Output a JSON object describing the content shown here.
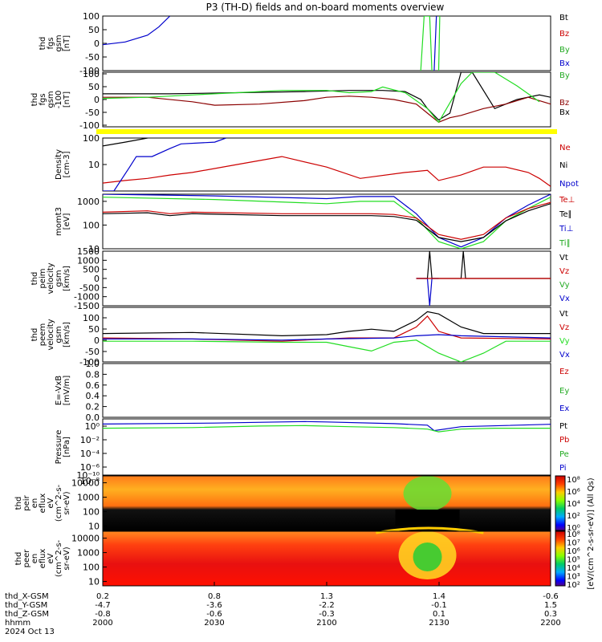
{
  "title": "P3 (TH-D) fields and on-board moments overview",
  "colors": {
    "black": "#000000",
    "red": "#cc0000",
    "green": "#22dd22",
    "blue": "#0000cc",
    "darkred": "#8b0000",
    "yellow": "#ffff00"
  },
  "chart_data": [
    {
      "type": "line",
      "panel": "fgs",
      "ylabel_lines": [
        "thd",
        "fgs",
        "gsm",
        "[nT]"
      ],
      "ylim": [
        -100,
        100
      ],
      "yticks": [
        "100",
        "50",
        "0",
        "-50",
        "-100"
      ],
      "legend": [
        "Bt",
        "Bz",
        "By",
        "Bx"
      ],
      "series": [
        {
          "name": "Bx",
          "color": "blue",
          "x": [
            2000,
            2010,
            2020,
            2025,
            2030
          ],
          "y": [
            -5,
            5,
            30,
            60,
            100
          ]
        },
        {
          "name": "Bx",
          "color": "blue",
          "x": [
            2148,
            2149
          ],
          "y": [
            -100,
            100
          ]
        },
        {
          "name": "By",
          "color": "green",
          "x": [
            2142,
            2143.5,
            2146,
            2147
          ],
          "y": [
            -100,
            100,
            100,
            -100
          ]
        },
        {
          "name": "By",
          "color": "green",
          "x": [
            2150,
            2150.5
          ],
          "y": [
            -100,
            100
          ]
        }
      ]
    },
    {
      "type": "line",
      "panel": "fgs-100",
      "ylabel_lines": [
        "thd",
        "fgs",
        "gsm",
        "-100",
        "[nT]"
      ],
      "ylim": [
        -140,
        100
      ],
      "yticks": [
        "100",
        "50",
        "0",
        "-50",
        "-100"
      ],
      "legend": [
        "By",
        "Bz",
        "Bx"
      ],
      "series": [
        {
          "name": "Bx",
          "color": "black",
          "x": [
            2000,
            2030,
            2060,
            2090,
            2110,
            2125,
            2135,
            2142,
            2145,
            2150,
            2155,
            2160,
            2165,
            2175,
            2185,
            2195,
            2200
          ],
          "y": [
            5,
            5,
            10,
            15,
            20,
            20,
            15,
            -20,
            -60,
            -110,
            -80,
            100,
            100,
            -60,
            -20,
            0,
            -10
          ]
        },
        {
          "name": "Bz",
          "color": "darkred",
          "x": [
            2000,
            2020,
            2040,
            2050,
            2070,
            2090,
            2100,
            2110,
            2120,
            2130,
            2140,
            2145,
            2150,
            2155,
            2160,
            2170,
            2180,
            2190,
            2200
          ],
          "y": [
            -10,
            -10,
            -30,
            -45,
            -40,
            -25,
            -10,
            -5,
            -10,
            -20,
            -40,
            -80,
            -120,
            -100,
            -90,
            -60,
            -40,
            -10,
            -40
          ]
        },
        {
          "name": "By",
          "color": "green",
          "x": [
            2000,
            2020,
            2040,
            2060,
            2080,
            2100,
            2110,
            2120,
            2125,
            2135,
            2145,
            2150,
            2160,
            2165,
            2175,
            2185,
            2195
          ],
          "y": [
            -15,
            -10,
            0,
            10,
            20,
            20,
            10,
            15,
            35,
            10,
            -60,
            -120,
            50,
            100,
            100,
            40,
            -30
          ]
        }
      ]
    },
    {
      "type": "line",
      "panel": "density",
      "ylabel_lines": [
        "Density",
        "[cm-3]"
      ],
      "scale": "log",
      "ylim": [
        1,
        100
      ],
      "yticks": [
        "100",
        "10"
      ],
      "legend": [
        "Ne",
        "Ni",
        "Npot"
      ],
      "series": [
        {
          "name": "Ne",
          "color": "red",
          "x": [
            2000,
            2010,
            2020,
            2030,
            2040,
            2060,
            2080,
            2100,
            2115,
            2135,
            2145,
            2150,
            2160,
            2170,
            2180,
            2190,
            2195,
            2200
          ],
          "y": [
            2,
            2.5,
            3,
            4,
            5,
            10,
            20,
            8,
            3,
            5,
            6,
            2.5,
            4,
            8,
            8,
            5,
            3,
            1.5
          ]
        },
        {
          "name": "Ni",
          "color": "black",
          "x": [
            2000,
            2010,
            2020,
            2030
          ],
          "y": [
            50,
            70,
            100,
            150
          ]
        },
        {
          "name": "Npot",
          "color": "blue",
          "x": [
            2000,
            2005,
            2012,
            2015,
            2022,
            2030,
            2035,
            2050,
            2055
          ],
          "y": [
            1,
            1,
            8,
            20,
            20,
            40,
            60,
            70,
            100
          ]
        }
      ]
    },
    {
      "type": "line",
      "panel": "mom",
      "ylabel_lines": [
        "momt3",
        "[eV]"
      ],
      "scale": "log",
      "ylim": [
        10,
        2000
      ],
      "yticks": [
        "1000",
        "100",
        "10"
      ],
      "legend": [
        "Te⊥",
        "Te∥",
        "Ti⊥",
        "Ti∥"
      ],
      "series": [
        {
          "name": "Ti⊥",
          "color": "blue",
          "x": [
            2000,
            2050,
            2100,
            2115,
            2130,
            2140,
            2150,
            2160,
            2170,
            2180,
            2190,
            2200
          ],
          "y": [
            2000,
            1700,
            1300,
            1600,
            1600,
            300,
            30,
            12,
            30,
            200,
            700,
            2000
          ]
        },
        {
          "name": "Ti∥",
          "color": "green",
          "x": [
            2000,
            2050,
            2100,
            2115,
            2130,
            2140,
            2150,
            2160,
            2170,
            2180,
            2190,
            2200
          ],
          "y": [
            1500,
            1200,
            800,
            1000,
            1000,
            200,
            20,
            10,
            20,
            150,
            500,
            1500
          ]
        },
        {
          "name": "Te⊥",
          "color": "red",
          "x": [
            2000,
            2020,
            2030,
            2040,
            2080,
            2120,
            2130,
            2140,
            2150,
            2160,
            2170,
            2180,
            2190,
            2200
          ],
          "y": [
            350,
            400,
            300,
            350,
            300,
            300,
            280,
            200,
            40,
            25,
            40,
            200,
            500,
            900
          ]
        },
        {
          "name": "Te∥",
          "color": "black",
          "x": [
            2000,
            2020,
            2030,
            2040,
            2080,
            2120,
            2130,
            2140,
            2150,
            2160,
            2170,
            2180,
            2190,
            2200
          ],
          "y": [
            300,
            330,
            250,
            300,
            250,
            250,
            230,
            160,
            30,
            20,
            30,
            150,
            400,
            800
          ]
        }
      ]
    },
    {
      "type": "line",
      "panel": "peim-velocity",
      "ylabel_lines": [
        "thd",
        "peim",
        "velocity",
        "gsm",
        "[km/s]"
      ],
      "ylim": [
        -1500,
        1500
      ],
      "yticks": [
        "1500",
        "1000",
        "500",
        "0",
        "-500",
        "-1000",
        "-1500"
      ],
      "legend": [
        "Vt",
        "Vz",
        "Vy",
        "Vx"
      ],
      "series": [
        {
          "name": "Vt",
          "color": "black",
          "x": [
            2140,
            2145,
            2146,
            2147,
            2150,
            2160,
            2161,
            2162,
            2200
          ],
          "y": [
            0,
            0,
            1500,
            0,
            0,
            0,
            1500,
            0,
            0
          ]
        },
        {
          "name": "Vx",
          "color": "blue",
          "x": [
            2140,
            2145,
            2146,
            2147,
            2150
          ],
          "y": [
            0,
            0,
            -1500,
            0,
            0
          ]
        },
        {
          "name": "Vz",
          "color": "red",
          "x": [
            2140,
            2150,
            2200
          ],
          "y": [
            0,
            0,
            0
          ]
        }
      ]
    },
    {
      "type": "line",
      "panel": "peem-velocity",
      "ylabel_lines": [
        "thd",
        "peem",
        "velocity",
        "gsm",
        "[km/s]"
      ],
      "ylim": [
        -100,
        150
      ],
      "yticks": [
        "100",
        "50",
        "0",
        "-50",
        "-100"
      ],
      "legend": [
        "Vt",
        "Vz",
        "Vy",
        "Vx"
      ],
      "series": [
        {
          "name": "Vt",
          "color": "black",
          "x": [
            2000,
            2040,
            2080,
            2100,
            2110,
            2120,
            2130,
            2140,
            2145,
            2150,
            2160,
            2170,
            2200
          ],
          "y": [
            30,
            35,
            20,
            25,
            40,
            50,
            40,
            90,
            130,
            120,
            60,
            30,
            30
          ]
        },
        {
          "name": "Vz",
          "color": "red",
          "x": [
            2000,
            2040,
            2080,
            2100,
            2110,
            2130,
            2140,
            2145,
            2150,
            2160,
            2200
          ],
          "y": [
            10,
            5,
            -5,
            5,
            10,
            10,
            60,
            110,
            40,
            10,
            5
          ]
        },
        {
          "name": "Vy",
          "color": "green",
          "x": [
            2000,
            2040,
            2080,
            2100,
            2110,
            2120,
            2130,
            2140,
            2150,
            2160,
            2170,
            2180,
            2200
          ],
          "y": [
            -5,
            -5,
            -10,
            -10,
            -30,
            -50,
            -10,
            0,
            -60,
            -100,
            -60,
            -5,
            -5
          ]
        },
        {
          "name": "Vx",
          "color": "blue",
          "x": [
            2000,
            2040,
            2080,
            2100,
            2130,
            2140,
            2150,
            2160,
            2200
          ],
          "y": [
            5,
            5,
            0,
            5,
            10,
            20,
            25,
            20,
            10
          ]
        }
      ]
    },
    {
      "type": "line",
      "panel": "efield",
      "ylabel_lines": [
        "E=-VxB",
        "[mV/m]"
      ],
      "ylim": [
        0,
        1
      ],
      "yticks": [
        "1.0",
        "0.8",
        "0.6",
        "0.4",
        "0.2",
        "0.0"
      ],
      "legend": [
        "Ez",
        "Ey",
        "Ex"
      ],
      "series": []
    },
    {
      "type": "line",
      "panel": "pressure",
      "ylabel_lines": [
        "Pressure",
        "[nPa]"
      ],
      "scale": "log",
      "ylim": [
        1e-10,
        10
      ],
      "yticks": [
        "10⁰",
        "10⁻²",
        "10⁻⁴",
        "10⁻⁶",
        "10⁻⁸",
        "10⁻¹⁰"
      ],
      "legend": [
        "Pt",
        "Pb",
        "Pe",
        "Pi"
      ],
      "series": [
        {
          "name": "Pt",
          "color": "blue",
          "x": [
            2000,
            2050,
            2090,
            2100,
            2130,
            2145,
            2148,
            2160,
            2200
          ],
          "y": [
            1,
            1.5,
            3,
            2.5,
            1.2,
            0.6,
            0.05,
            0.3,
            0.9
          ]
        },
        {
          "name": "Pe",
          "color": "green",
          "x": [
            2000,
            2040,
            2070,
            2090,
            2110,
            2130,
            2145,
            2150,
            2160,
            2175,
            2200
          ],
          "y": [
            0.15,
            0.2,
            0.4,
            0.5,
            0.3,
            0.2,
            0.1,
            0.03,
            0.1,
            0.15,
            0.15
          ]
        }
      ]
    },
    {
      "type": "heatmap",
      "panel": "peir",
      "ylabel_lines": [
        "thd",
        "peir",
        "en",
        "eflux",
        "eV",
        "(cm^2-s-",
        "sr-eV)"
      ],
      "scale": "log",
      "ylim": [
        5,
        30000
      ],
      "yticks": [
        "10000",
        "1000",
        "100",
        "10"
      ]
    },
    {
      "type": "heatmap",
      "panel": "peer",
      "ylabel_lines": [
        "thd",
        "peer",
        "en",
        "eflux",
        "eV",
        "(cm^2-s-",
        "sr-eV)"
      ],
      "scale": "log",
      "ylim": [
        5,
        30000
      ],
      "yticks": [
        "10000",
        "1000",
        "100",
        "10"
      ]
    }
  ],
  "colorbar": {
    "label": "[eV/(cm^2-s-sr-eV)] (All Qs)",
    "upper_ticks": [
      "10⁸",
      "10⁶",
      "10⁴",
      "10²",
      "10⁰"
    ],
    "lower_ticks": [
      "10⁸",
      "10⁷",
      "10⁶",
      "10⁵",
      "10⁴",
      "10³",
      "10²"
    ]
  },
  "x_axis": {
    "row_labels": [
      "thd_X-GSM",
      "thd_Y-GSM",
      "thd_Z-GSM",
      "hhmm",
      "2024 Oct 13"
    ],
    "columns": [
      {
        "X": "0.2",
        "Y": "-4.7",
        "Z": "-0.8",
        "hhmm": "2000"
      },
      {
        "X": "0.8",
        "Y": "-3.6",
        "Z": "-0.6",
        "hhmm": "2030"
      },
      {
        "X": "1.3",
        "Y": "-2.2",
        "Z": "-0.3",
        "hhmm": "2100"
      },
      {
        "X": "1.4",
        "Y": "-0.1",
        "Z": "0.1",
        "hhmm": "2130"
      },
      {
        "X": "-0.6",
        "Y": "1.5",
        "Z": "0.3",
        "hhmm": "2200"
      }
    ],
    "xlim": [
      2000,
      2200
    ]
  }
}
